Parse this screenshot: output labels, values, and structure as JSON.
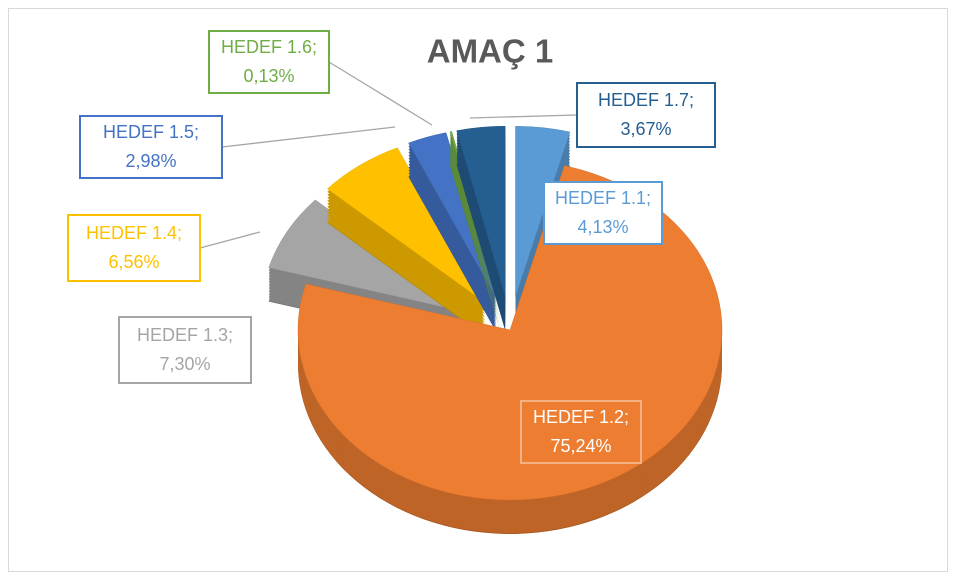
{
  "chart_data": {
    "type": "pie",
    "title": "AMAÇ 1",
    "categories": [
      "HEDEF 1.1;",
      "HEDEF 1.2;",
      "HEDEF 1.3;",
      "HEDEF 1.4;",
      "HEDEF 1.5;",
      "HEDEF 1.6;",
      "HEDEF 1.7;"
    ],
    "values": [
      4.13,
      75.24,
      7.3,
      6.56,
      2.98,
      0.13,
      3.67
    ],
    "value_labels": [
      "4,13%",
      "75,24%",
      "7,30%",
      "6,56%",
      "2,98%",
      "0,13%",
      "3,67%"
    ],
    "colors": [
      "#5b9bd5",
      "#ed7d31",
      "#a5a5a5",
      "#ffc000",
      "#4472c4",
      "#70ad47",
      "#255e91"
    ]
  }
}
